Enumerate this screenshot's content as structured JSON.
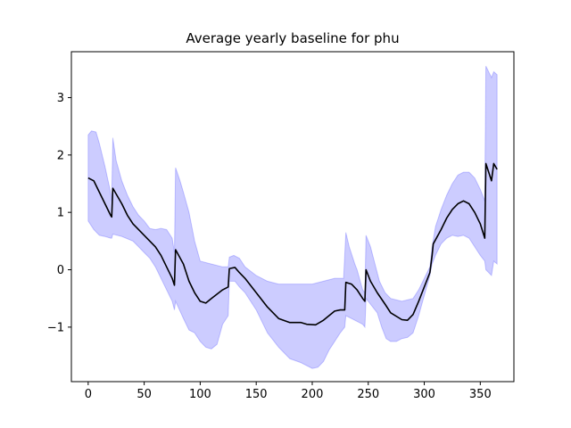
{
  "chart_data": {
    "type": "area",
    "title": "Average yearly baseline for phu",
    "xlabel": "",
    "ylabel": "",
    "xlim": [
      -15,
      380
    ],
    "ylim": [
      -1.95,
      3.8
    ],
    "xticks": [
      0,
      50,
      100,
      150,
      200,
      250,
      300,
      350
    ],
    "yticks": [
      -1,
      0,
      1,
      2,
      3
    ],
    "grid": false,
    "legend": "none",
    "colors": {
      "line": "#000000",
      "band": "#0000ff",
      "band_opacity": 0.2
    },
    "series": [
      {
        "name": "",
        "role": "mean",
        "points": [
          [
            0,
            1.6
          ],
          [
            5,
            1.55
          ],
          [
            10,
            1.35
          ],
          [
            15,
            1.15
          ],
          [
            20,
            0.95
          ],
          [
            21,
            0.92
          ],
          [
            22,
            1.42
          ],
          [
            30,
            1.15
          ],
          [
            35,
            0.95
          ],
          [
            40,
            0.8
          ],
          [
            50,
            0.6
          ],
          [
            60,
            0.4
          ],
          [
            65,
            0.25
          ],
          [
            70,
            0.05
          ],
          [
            75,
            -0.15
          ],
          [
            77,
            -0.27
          ],
          [
            78,
            0.35
          ],
          [
            85,
            0.1
          ],
          [
            90,
            -0.2
          ],
          [
            95,
            -0.4
          ],
          [
            100,
            -0.55
          ],
          [
            105,
            -0.58
          ],
          [
            110,
            -0.5
          ],
          [
            120,
            -0.35
          ],
          [
            125,
            -0.3
          ],
          [
            126,
            0.02
          ],
          [
            131,
            0.04
          ],
          [
            135,
            -0.05
          ],
          [
            140,
            -0.15
          ],
          [
            150,
            -0.4
          ],
          [
            160,
            -0.65
          ],
          [
            170,
            -0.85
          ],
          [
            180,
            -0.92
          ],
          [
            190,
            -0.92
          ],
          [
            195,
            -0.95
          ],
          [
            203,
            -0.96
          ],
          [
            210,
            -0.88
          ],
          [
            215,
            -0.8
          ],
          [
            220,
            -0.72
          ],
          [
            225,
            -0.7
          ],
          [
            229,
            -0.7
          ],
          [
            230,
            -0.22
          ],
          [
            235,
            -0.25
          ],
          [
            240,
            -0.35
          ],
          [
            245,
            -0.5
          ],
          [
            247,
            -0.55
          ],
          [
            248,
            0.0
          ],
          [
            252,
            -0.2
          ],
          [
            258,
            -0.4
          ],
          [
            265,
            -0.6
          ],
          [
            270,
            -0.75
          ],
          [
            280,
            -0.87
          ],
          [
            285,
            -0.88
          ],
          [
            290,
            -0.78
          ],
          [
            295,
            -0.55
          ],
          [
            300,
            -0.3
          ],
          [
            305,
            -0.05
          ],
          [
            307,
            0.25
          ],
          [
            308,
            0.45
          ],
          [
            315,
            0.7
          ],
          [
            320,
            0.9
          ],
          [
            325,
            1.05
          ],
          [
            330,
            1.15
          ],
          [
            335,
            1.2
          ],
          [
            340,
            1.15
          ],
          [
            345,
            1.0
          ],
          [
            350,
            0.8
          ],
          [
            354,
            0.55
          ],
          [
            355,
            1.85
          ],
          [
            360,
            1.55
          ],
          [
            362,
            1.85
          ],
          [
            365,
            1.75
          ]
        ]
      },
      {
        "name": "",
        "role": "band",
        "upper": [
          [
            0,
            2.35
          ],
          [
            3,
            2.42
          ],
          [
            7,
            2.4
          ],
          [
            10,
            2.2
          ],
          [
            15,
            1.8
          ],
          [
            20,
            1.35
          ],
          [
            21,
            1.2
          ],
          [
            22,
            2.3
          ],
          [
            25,
            1.9
          ],
          [
            30,
            1.55
          ],
          [
            35,
            1.3
          ],
          [
            40,
            1.1
          ],
          [
            45,
            0.95
          ],
          [
            50,
            0.85
          ],
          [
            55,
            0.72
          ],
          [
            60,
            0.7
          ],
          [
            65,
            0.72
          ],
          [
            70,
            0.7
          ],
          [
            75,
            0.55
          ],
          [
            77,
            0.3
          ],
          [
            78,
            1.78
          ],
          [
            82,
            1.55
          ],
          [
            85,
            1.35
          ],
          [
            90,
            1.0
          ],
          [
            95,
            0.5
          ],
          [
            100,
            0.15
          ],
          [
            110,
            0.1
          ],
          [
            120,
            0.05
          ],
          [
            125,
            0.05
          ],
          [
            126,
            0.22
          ],
          [
            130,
            0.25
          ],
          [
            135,
            0.2
          ],
          [
            140,
            0.05
          ],
          [
            150,
            -0.1
          ],
          [
            160,
            -0.2
          ],
          [
            170,
            -0.25
          ],
          [
            190,
            -0.25
          ],
          [
            200,
            -0.25
          ],
          [
            210,
            -0.2
          ],
          [
            220,
            -0.15
          ],
          [
            228,
            -0.15
          ],
          [
            230,
            0.65
          ],
          [
            233,
            0.4
          ],
          [
            238,
            0.1
          ],
          [
            240,
            0.0
          ],
          [
            245,
            -0.35
          ],
          [
            247,
            -0.4
          ],
          [
            248,
            0.6
          ],
          [
            252,
            0.4
          ],
          [
            256,
            0.1
          ],
          [
            260,
            -0.2
          ],
          [
            265,
            -0.4
          ],
          [
            270,
            -0.5
          ],
          [
            280,
            -0.55
          ],
          [
            290,
            -0.5
          ],
          [
            295,
            -0.35
          ],
          [
            300,
            -0.15
          ],
          [
            305,
            0.05
          ],
          [
            307,
            0.4
          ],
          [
            310,
            0.75
          ],
          [
            315,
            1.05
          ],
          [
            320,
            1.3
          ],
          [
            325,
            1.5
          ],
          [
            330,
            1.65
          ],
          [
            335,
            1.7
          ],
          [
            340,
            1.7
          ],
          [
            345,
            1.6
          ],
          [
            350,
            1.4
          ],
          [
            354,
            1.2
          ],
          [
            355,
            3.55
          ],
          [
            360,
            3.35
          ],
          [
            362,
            3.45
          ],
          [
            365,
            3.4
          ]
        ],
        "lower": [
          [
            0,
            0.85
          ],
          [
            5,
            0.7
          ],
          [
            10,
            0.6
          ],
          [
            15,
            0.58
          ],
          [
            20,
            0.55
          ],
          [
            21,
            0.55
          ],
          [
            22,
            0.62
          ],
          [
            30,
            0.58
          ],
          [
            40,
            0.5
          ],
          [
            45,
            0.4
          ],
          [
            50,
            0.3
          ],
          [
            55,
            0.2
          ],
          [
            60,
            0.05
          ],
          [
            65,
            -0.15
          ],
          [
            70,
            -0.35
          ],
          [
            75,
            -0.55
          ],
          [
            77,
            -0.7
          ],
          [
            78,
            -0.55
          ],
          [
            85,
            -0.85
          ],
          [
            90,
            -1.05
          ],
          [
            95,
            -1.1
          ],
          [
            100,
            -1.25
          ],
          [
            105,
            -1.35
          ],
          [
            110,
            -1.38
          ],
          [
            115,
            -1.3
          ],
          [
            120,
            -0.95
          ],
          [
            125,
            -0.8
          ],
          [
            126,
            -0.2
          ],
          [
            131,
            -0.2
          ],
          [
            135,
            -0.3
          ],
          [
            140,
            -0.4
          ],
          [
            150,
            -0.7
          ],
          [
            160,
            -1.1
          ],
          [
            170,
            -1.35
          ],
          [
            180,
            -1.55
          ],
          [
            190,
            -1.62
          ],
          [
            200,
            -1.72
          ],
          [
            205,
            -1.7
          ],
          [
            210,
            -1.6
          ],
          [
            215,
            -1.4
          ],
          [
            220,
            -1.25
          ],
          [
            225,
            -1.1
          ],
          [
            229,
            -1.0
          ],
          [
            230,
            -0.8
          ],
          [
            235,
            -0.85
          ],
          [
            240,
            -0.9
          ],
          [
            245,
            -0.95
          ],
          [
            247,
            -1.0
          ],
          [
            248,
            -0.5
          ],
          [
            252,
            -0.6
          ],
          [
            258,
            -0.75
          ],
          [
            262,
            -1.0
          ],
          [
            266,
            -1.2
          ],
          [
            270,
            -1.25
          ],
          [
            275,
            -1.25
          ],
          [
            280,
            -1.2
          ],
          [
            285,
            -1.18
          ],
          [
            290,
            -1.1
          ],
          [
            295,
            -0.8
          ],
          [
            300,
            -0.45
          ],
          [
            305,
            -0.1
          ],
          [
            307,
            0.1
          ],
          [
            310,
            0.25
          ],
          [
            315,
            0.45
          ],
          [
            320,
            0.55
          ],
          [
            325,
            0.6
          ],
          [
            330,
            0.58
          ],
          [
            335,
            0.6
          ],
          [
            340,
            0.55
          ],
          [
            345,
            0.4
          ],
          [
            350,
            0.25
          ],
          [
            354,
            0.15
          ],
          [
            355,
            0.0
          ],
          [
            360,
            -0.1
          ],
          [
            362,
            0.15
          ],
          [
            365,
            0.1
          ]
        ]
      }
    ]
  }
}
